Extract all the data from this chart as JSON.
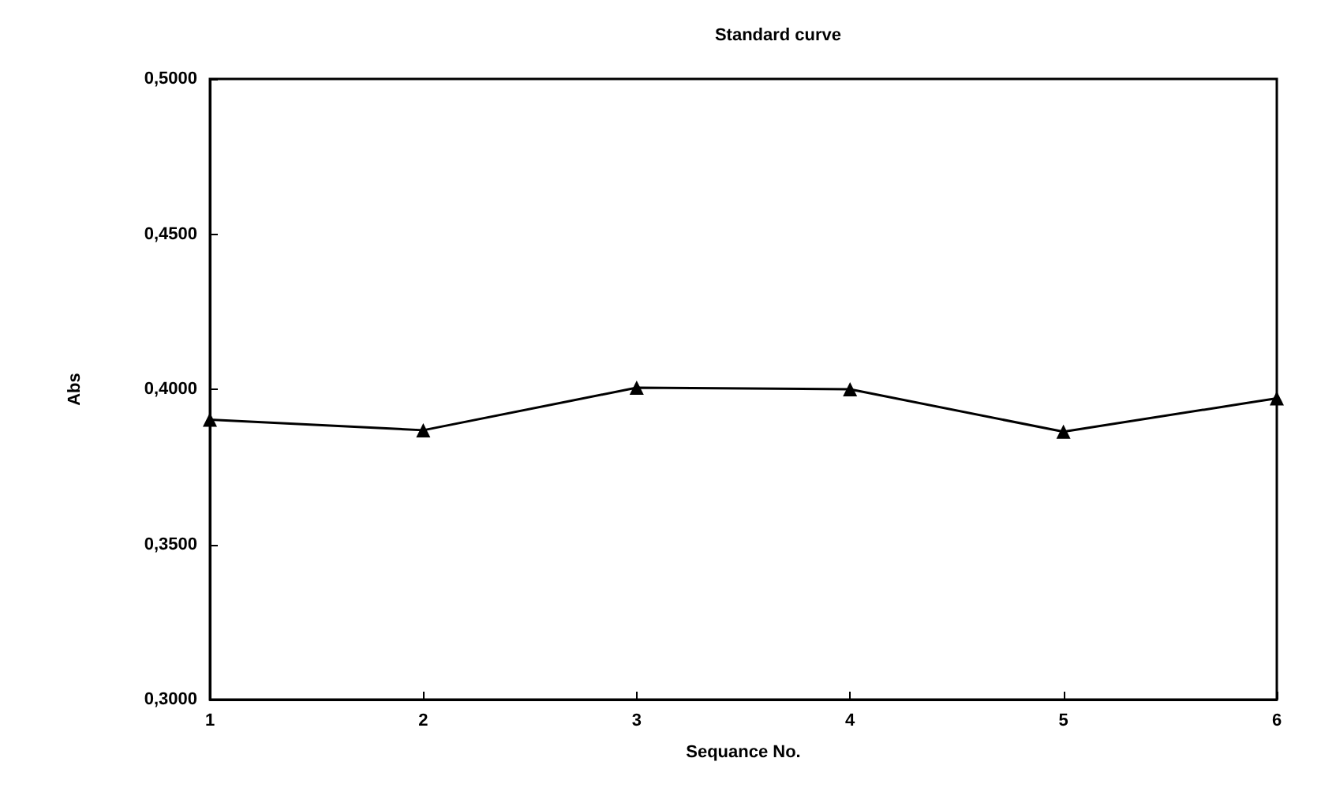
{
  "chart_data": {
    "type": "line",
    "title": "Standard curve",
    "xlabel": "Sequance No.",
    "ylabel": "Abs",
    "x": [
      1,
      2,
      3,
      4,
      5,
      6
    ],
    "series": [
      {
        "color": "#000000",
        "values": [
          0.3902,
          0.3868,
          0.4005,
          0.4,
          0.3863,
          0.3971
        ]
      }
    ],
    "xlim": [
      1,
      6
    ],
    "xticks": [
      1,
      2,
      3,
      4,
      5,
      6
    ],
    "ylim": [
      0.3,
      0.5
    ],
    "yticks": [
      {
        "value": 0.3,
        "label": "0,3000"
      },
      {
        "value": 0.35,
        "label": "0,3500"
      },
      {
        "value": 0.4,
        "label": "0,4000"
      },
      {
        "value": 0.45,
        "label": "0,4500"
      },
      {
        "value": 0.5,
        "label": "0,5000"
      }
    ],
    "grid": false,
    "marker": "triangle",
    "line_style": "solid"
  }
}
